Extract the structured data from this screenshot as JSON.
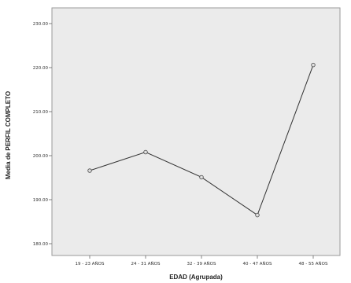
{
  "chart_data": {
    "type": "line",
    "title": "",
    "xlabel": "EDAD (Agrupada)",
    "ylabel": "Media de PERFIL COMPLETO",
    "categories": [
      "19 - 23 AÑOS",
      "24 - 31 AÑOS",
      "32 - 39 AÑOS",
      "40 - 47 AÑOS",
      "48 - 55 AÑOS"
    ],
    "series": [
      {
        "values": [
          196.6,
          200.8,
          195.1,
          186.5,
          220.6
        ]
      }
    ],
    "yticks": [
      "180.00",
      "190.00",
      "200.00",
      "210.00",
      "220.00",
      "230.00"
    ],
    "ylim": [
      180,
      230
    ],
    "grid": false,
    "legend": "none",
    "colors": {
      "plot_background": "#ebebeb",
      "line": "#333333",
      "marker": "#555555"
    }
  }
}
